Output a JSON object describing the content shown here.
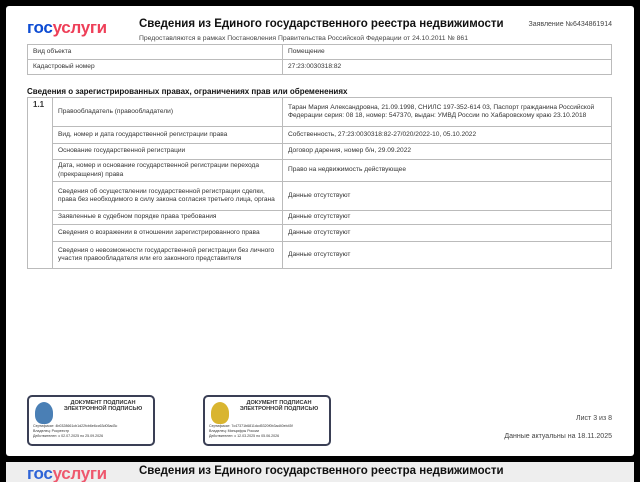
{
  "header": {
    "logo_part1": "гос",
    "logo_part2": "услуги",
    "title": "Сведения из Единого государственного реестра недвижимости",
    "subtitle": "Предоставляются в рамках Постановления Правительства Российской Федерации от 24.10.2011 № 861",
    "application_no": "Заявление №6434861914"
  },
  "object_table": [
    {
      "label": "Вид объекта",
      "value": "Помещение"
    },
    {
      "label": "Кадастровый номер",
      "value": "27:23:0030318:82"
    }
  ],
  "rights": {
    "heading": "Сведения о зарегистрированных правах, ограничениях прав или обременениях",
    "number": "1.1",
    "rows": [
      {
        "label": "Правообладатель (правообладатели)",
        "value": "Таран Мария Александровна, 21.09.1998, СНИЛС 197-352-614 03, Паспорт гражданина Российской Федерации серия: 08 18, номер: 547370, выдан: УМВД России по Хабаровскому краю 23.10.2018"
      },
      {
        "label": "Вид, номер и дата  государственной регистрации права",
        "value": "Собственность, 27:23:0030318:82-27/020/2022-10, 05.10.2022"
      },
      {
        "label": "Основание государственной регистрации",
        "value": "Договор дарения, номер б/н, 29.09.2022"
      },
      {
        "label": "Дата, номер и основание государственной регистрации перехода (прекращения) права",
        "value": "Право на недвижимость действующее"
      },
      {
        "label": "Сведения об осуществлении государственной регистрации сделки, права без необходимого в силу закона согласия третьего лица, органа",
        "value": "Данные отсутствуют"
      },
      {
        "label": "Заявленные в судебном порядке права требования",
        "value": "Данные отсутствуют"
      },
      {
        "label": "Сведения о возражении в отношении зарегистрированного права",
        "value": "Данные отсутствуют"
      },
      {
        "label": "Сведения о невозможности государственной регистрации без личного участия правообладателя или его законного представителя",
        "value": "Данные отсутствуют"
      }
    ]
  },
  "stamps": [
    {
      "heading": "ДОКУМЕНТ ПОДПИСАН ЭЛЕКТРОННОЙ ПОДПИСЬЮ",
      "certificate": "Сертификат: 4b0328661cb1d22fcb6e6cc63d05ad3c",
      "owner": "Владелец: Росреестр",
      "valid": "Действителен: с 02.07.2025 по 25.09.2026",
      "emblem_color": "#4a7fb5"
    },
    {
      "heading": "ДОКУМЕНТ ПОДПИСАН ЭЛЕКТРОННОЙ ПОДПИСЬЮ",
      "certificate": "Сертификат: 7c47371b6811dcd5320f0b3ad40eb45f",
      "owner": "Владелец: Минцифры России",
      "valid": "Действителен: с 12.03.2025 по 05.06.2026",
      "emblem_color": "#d9b530"
    }
  ],
  "footer": {
    "sheet": "Лист 3 из 8",
    "actual": "Данные актуальны на 18.11.2025"
  },
  "next_page": {
    "title": "Сведения из Единого государственного реестра недвижимости"
  }
}
